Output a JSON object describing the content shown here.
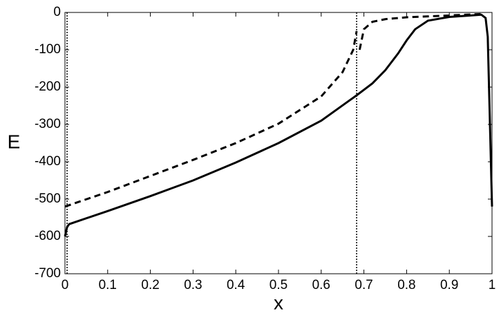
{
  "chart_data": {
    "type": "line",
    "xlabel": "x",
    "ylabel": "E",
    "xlim": [
      0,
      1
    ],
    "ylim": [
      -700,
      0
    ],
    "xticks": [
      0,
      0.1,
      0.2,
      0.3,
      0.4,
      0.5,
      0.6,
      0.7,
      0.8,
      0.9,
      1
    ],
    "yticks": [
      -700,
      -600,
      -500,
      -400,
      -300,
      -200,
      -100,
      0
    ],
    "vlines": [
      0.005,
      0.683
    ],
    "series": [
      {
        "color": "#000000",
        "style": "solid",
        "x": [
          0,
          0.005,
          0.01,
          0.1,
          0.2,
          0.3,
          0.4,
          0.5,
          0.6,
          0.683,
          0.72,
          0.75,
          0.78,
          0.8,
          0.82,
          0.85,
          0.9,
          0.95,
          0.975,
          0.985,
          0.99,
          1.0
        ],
        "values": [
          -600,
          -575,
          -567,
          -532,
          -492,
          -450,
          -402,
          -350,
          -290,
          -222,
          -190,
          -155,
          -110,
          -75,
          -45,
          -22,
          -12,
          -8,
          -6,
          -15,
          -65,
          -520
        ]
      },
      {
        "color": "#000000",
        "style": "dashed",
        "x": [
          0,
          0.1,
          0.2,
          0.3,
          0.4,
          0.5,
          0.6,
          0.65,
          0.675,
          0.683,
          0.686,
          0.69,
          0.7,
          0.72,
          0.75,
          0.8,
          0.9,
          0.98
        ],
        "values": [
          -520,
          -481,
          -438,
          -395,
          -350,
          -298,
          -225,
          -160,
          -100,
          -50,
          null,
          -100,
          -45,
          -25,
          -18,
          -13,
          -8,
          -4
        ]
      }
    ]
  }
}
